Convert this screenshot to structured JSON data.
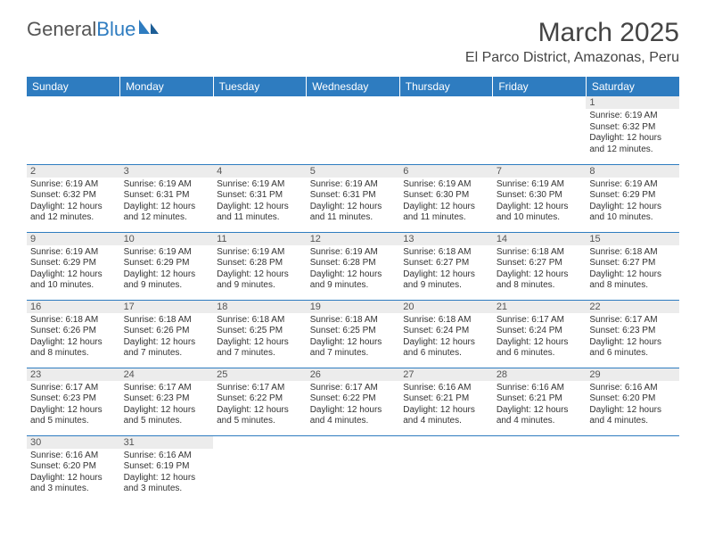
{
  "brand": {
    "part1": "General",
    "part2": "Blue"
  },
  "title": "March 2025",
  "location": "El Parco District, Amazonas, Peru",
  "colors": {
    "header_bg": "#2e7cc0",
    "header_text": "#ffffff",
    "daynum_bg": "#ececec",
    "border": "#2e7cc0",
    "text": "#333333"
  },
  "weekdays": [
    "Sunday",
    "Monday",
    "Tuesday",
    "Wednesday",
    "Thursday",
    "Friday",
    "Saturday"
  ],
  "weeks": [
    [
      null,
      null,
      null,
      null,
      null,
      null,
      {
        "n": "1",
        "sr": "Sunrise: 6:19 AM",
        "ss": "Sunset: 6:32 PM",
        "d1": "Daylight: 12 hours",
        "d2": "and 12 minutes."
      }
    ],
    [
      {
        "n": "2",
        "sr": "Sunrise: 6:19 AM",
        "ss": "Sunset: 6:32 PM",
        "d1": "Daylight: 12 hours",
        "d2": "and 12 minutes."
      },
      {
        "n": "3",
        "sr": "Sunrise: 6:19 AM",
        "ss": "Sunset: 6:31 PM",
        "d1": "Daylight: 12 hours",
        "d2": "and 12 minutes."
      },
      {
        "n": "4",
        "sr": "Sunrise: 6:19 AM",
        "ss": "Sunset: 6:31 PM",
        "d1": "Daylight: 12 hours",
        "d2": "and 11 minutes."
      },
      {
        "n": "5",
        "sr": "Sunrise: 6:19 AM",
        "ss": "Sunset: 6:31 PM",
        "d1": "Daylight: 12 hours",
        "d2": "and 11 minutes."
      },
      {
        "n": "6",
        "sr": "Sunrise: 6:19 AM",
        "ss": "Sunset: 6:30 PM",
        "d1": "Daylight: 12 hours",
        "d2": "and 11 minutes."
      },
      {
        "n": "7",
        "sr": "Sunrise: 6:19 AM",
        "ss": "Sunset: 6:30 PM",
        "d1": "Daylight: 12 hours",
        "d2": "and 10 minutes."
      },
      {
        "n": "8",
        "sr": "Sunrise: 6:19 AM",
        "ss": "Sunset: 6:29 PM",
        "d1": "Daylight: 12 hours",
        "d2": "and 10 minutes."
      }
    ],
    [
      {
        "n": "9",
        "sr": "Sunrise: 6:19 AM",
        "ss": "Sunset: 6:29 PM",
        "d1": "Daylight: 12 hours",
        "d2": "and 10 minutes."
      },
      {
        "n": "10",
        "sr": "Sunrise: 6:19 AM",
        "ss": "Sunset: 6:29 PM",
        "d1": "Daylight: 12 hours",
        "d2": "and 9 minutes."
      },
      {
        "n": "11",
        "sr": "Sunrise: 6:19 AM",
        "ss": "Sunset: 6:28 PM",
        "d1": "Daylight: 12 hours",
        "d2": "and 9 minutes."
      },
      {
        "n": "12",
        "sr": "Sunrise: 6:19 AM",
        "ss": "Sunset: 6:28 PM",
        "d1": "Daylight: 12 hours",
        "d2": "and 9 minutes."
      },
      {
        "n": "13",
        "sr": "Sunrise: 6:18 AM",
        "ss": "Sunset: 6:27 PM",
        "d1": "Daylight: 12 hours",
        "d2": "and 9 minutes."
      },
      {
        "n": "14",
        "sr": "Sunrise: 6:18 AM",
        "ss": "Sunset: 6:27 PM",
        "d1": "Daylight: 12 hours",
        "d2": "and 8 minutes."
      },
      {
        "n": "15",
        "sr": "Sunrise: 6:18 AM",
        "ss": "Sunset: 6:27 PM",
        "d1": "Daylight: 12 hours",
        "d2": "and 8 minutes."
      }
    ],
    [
      {
        "n": "16",
        "sr": "Sunrise: 6:18 AM",
        "ss": "Sunset: 6:26 PM",
        "d1": "Daylight: 12 hours",
        "d2": "and 8 minutes."
      },
      {
        "n": "17",
        "sr": "Sunrise: 6:18 AM",
        "ss": "Sunset: 6:26 PM",
        "d1": "Daylight: 12 hours",
        "d2": "and 7 minutes."
      },
      {
        "n": "18",
        "sr": "Sunrise: 6:18 AM",
        "ss": "Sunset: 6:25 PM",
        "d1": "Daylight: 12 hours",
        "d2": "and 7 minutes."
      },
      {
        "n": "19",
        "sr": "Sunrise: 6:18 AM",
        "ss": "Sunset: 6:25 PM",
        "d1": "Daylight: 12 hours",
        "d2": "and 7 minutes."
      },
      {
        "n": "20",
        "sr": "Sunrise: 6:18 AM",
        "ss": "Sunset: 6:24 PM",
        "d1": "Daylight: 12 hours",
        "d2": "and 6 minutes."
      },
      {
        "n": "21",
        "sr": "Sunrise: 6:17 AM",
        "ss": "Sunset: 6:24 PM",
        "d1": "Daylight: 12 hours",
        "d2": "and 6 minutes."
      },
      {
        "n": "22",
        "sr": "Sunrise: 6:17 AM",
        "ss": "Sunset: 6:23 PM",
        "d1": "Daylight: 12 hours",
        "d2": "and 6 minutes."
      }
    ],
    [
      {
        "n": "23",
        "sr": "Sunrise: 6:17 AM",
        "ss": "Sunset: 6:23 PM",
        "d1": "Daylight: 12 hours",
        "d2": "and 5 minutes."
      },
      {
        "n": "24",
        "sr": "Sunrise: 6:17 AM",
        "ss": "Sunset: 6:23 PM",
        "d1": "Daylight: 12 hours",
        "d2": "and 5 minutes."
      },
      {
        "n": "25",
        "sr": "Sunrise: 6:17 AM",
        "ss": "Sunset: 6:22 PM",
        "d1": "Daylight: 12 hours",
        "d2": "and 5 minutes."
      },
      {
        "n": "26",
        "sr": "Sunrise: 6:17 AM",
        "ss": "Sunset: 6:22 PM",
        "d1": "Daylight: 12 hours",
        "d2": "and 4 minutes."
      },
      {
        "n": "27",
        "sr": "Sunrise: 6:16 AM",
        "ss": "Sunset: 6:21 PM",
        "d1": "Daylight: 12 hours",
        "d2": "and 4 minutes."
      },
      {
        "n": "28",
        "sr": "Sunrise: 6:16 AM",
        "ss": "Sunset: 6:21 PM",
        "d1": "Daylight: 12 hours",
        "d2": "and 4 minutes."
      },
      {
        "n": "29",
        "sr": "Sunrise: 6:16 AM",
        "ss": "Sunset: 6:20 PM",
        "d1": "Daylight: 12 hours",
        "d2": "and 4 minutes."
      }
    ],
    [
      {
        "n": "30",
        "sr": "Sunrise: 6:16 AM",
        "ss": "Sunset: 6:20 PM",
        "d1": "Daylight: 12 hours",
        "d2": "and 3 minutes."
      },
      {
        "n": "31",
        "sr": "Sunrise: 6:16 AM",
        "ss": "Sunset: 6:19 PM",
        "d1": "Daylight: 12 hours",
        "d2": "and 3 minutes."
      },
      null,
      null,
      null,
      null,
      null
    ]
  ]
}
